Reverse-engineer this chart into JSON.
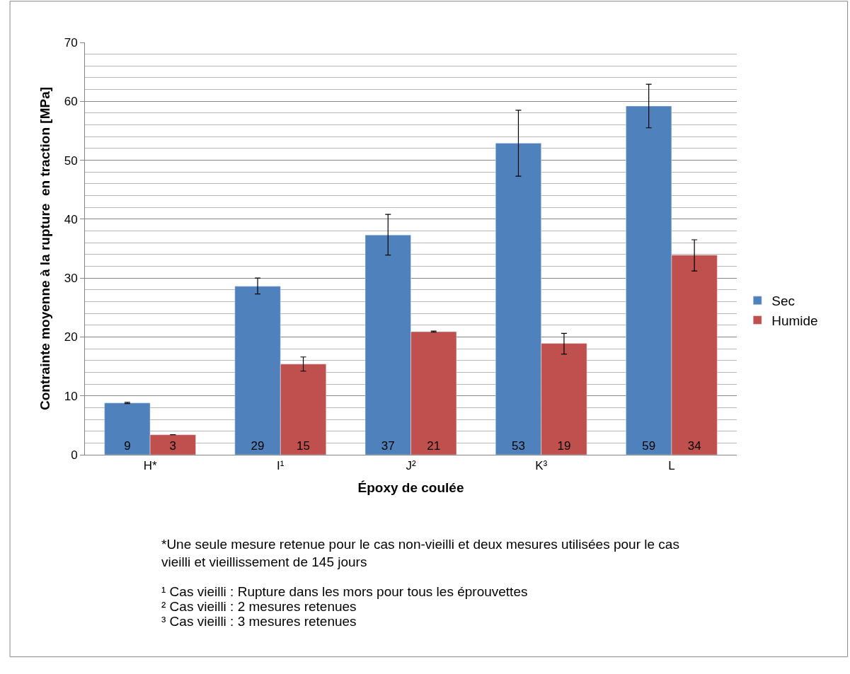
{
  "chart_data": {
    "type": "bar",
    "xlabel": "Époxy de coulée",
    "ylabel": "Contrainte moyenne à la rupture  en traction [MPa]",
    "categories": [
      "H*",
      "I¹",
      "J²",
      "K³",
      "L"
    ],
    "series": [
      {
        "name": "Sec",
        "color": "#4f81bd",
        "values": [
          8.8,
          28.6,
          37.3,
          52.9,
          59.2
        ],
        "value_labels": [
          "9",
          "29",
          "37",
          "53",
          "59"
        ],
        "errors": [
          0.1,
          [
            27.3,
            30.0
          ],
          [
            33.9,
            40.8
          ],
          [
            47.3,
            58.5
          ],
          [
            55.5,
            62.9
          ]
        ]
      },
      {
        "name": "Humide",
        "color": "#c0504d",
        "values": [
          3.4,
          15.4,
          20.9,
          18.9,
          33.9
        ],
        "value_labels": [
          "3",
          "15",
          "21",
          "19",
          "34"
        ],
        "errors": [
          null,
          [
            14.2,
            16.6
          ],
          0.1,
          [
            17.1,
            20.6
          ],
          [
            31.2,
            36.5
          ]
        ]
      }
    ],
    "ylim": [
      0,
      70
    ],
    "yticks": [
      0,
      10,
      20,
      30,
      40,
      50,
      60,
      70
    ],
    "grid": "y",
    "legend": "right",
    "annotations": [
      "*Une seule mesure retenue pour le cas non-vieilli et deux mesures utilisées pour le cas vieilli et vieillissement de 145 jours",
      "¹ Cas vieilli : Rupture dans les mors pour tous les éprouvettes",
      "² Cas vieilli : 2 mesures retenues",
      "³ Cas vieilli : 3 mesures retenues"
    ]
  }
}
